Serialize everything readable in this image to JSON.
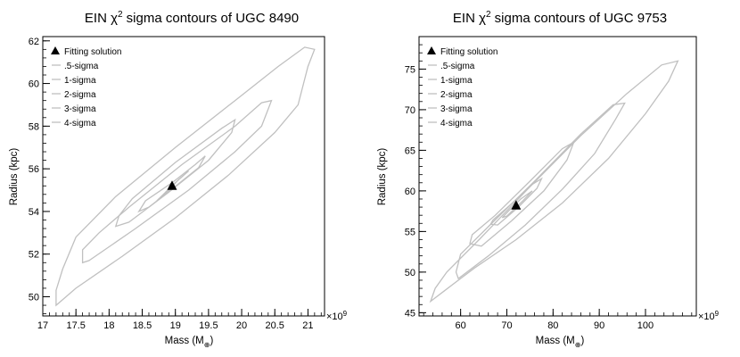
{
  "chart_data": [
    {
      "type": "contour",
      "title_prefix": "EIN χ",
      "title_sup": "2",
      "title_suffix": " sigma contours of UGC 8490",
      "xlabel": "Mass (M",
      "xlabel_sub": "⊕",
      "xlabel_end": ")",
      "ylabel": "Radius (kpc)",
      "x_multiplier": "×10",
      "x_multiplier_exp": "9",
      "xlim": [
        17.0,
        21.25
      ],
      "ylim": [
        49.1,
        62.2
      ],
      "xticks": [
        17,
        17.5,
        18,
        18.5,
        19,
        19.5,
        20,
        20.5,
        21
      ],
      "xtick_labels": [
        "17",
        "17.5",
        "18",
        "18.5",
        "19",
        "19.5",
        "20",
        "20.5",
        "21"
      ],
      "yticks": [
        50,
        52,
        54,
        56,
        58,
        60,
        62
      ],
      "ytick_labels": [
        "50",
        "52",
        "54",
        "56",
        "58",
        "60",
        "62"
      ],
      "best_fit": {
        "x": 18.95,
        "y": 55.2
      },
      "contours": [
        {
          "name": ".5-sigma",
          "points": [
            [
              18.85,
              54.9
            ],
            [
              19.0,
              55.35
            ],
            [
              19.2,
              55.9
            ],
            [
              19.05,
              55.5
            ],
            [
              18.9,
              55.0
            ],
            [
              18.72,
              54.5
            ]
          ]
        },
        {
          "name": "1-sigma",
          "points": [
            [
              18.6,
              54.2
            ],
            [
              18.95,
              55.05
            ],
            [
              19.35,
              56.05
            ],
            [
              19.45,
              56.6
            ],
            [
              19.3,
              56.2
            ],
            [
              18.95,
              55.35
            ],
            [
              18.55,
              54.5
            ],
            [
              18.45,
              54.0
            ]
          ]
        },
        {
          "name": "2-sigma",
          "points": [
            [
              18.3,
              53.5
            ],
            [
              18.9,
              54.9
            ],
            [
              19.5,
              56.4
            ],
            [
              19.85,
              57.7
            ],
            [
              19.9,
              58.3
            ],
            [
              19.7,
              57.9
            ],
            [
              19.0,
              56.3
            ],
            [
              18.35,
              54.6
            ],
            [
              18.15,
              53.8
            ],
            [
              18.1,
              53.3
            ]
          ]
        },
        {
          "name": "3-sigma",
          "points": [
            [
              17.7,
              51.7
            ],
            [
              18.4,
              53.2
            ],
            [
              19.2,
              55.0
            ],
            [
              19.9,
              56.8
            ],
            [
              20.3,
              58.0
            ],
            [
              20.45,
              59.2
            ],
            [
              20.3,
              59.1
            ],
            [
              19.9,
              58.0
            ],
            [
              19.1,
              56.2
            ],
            [
              18.3,
              54.2
            ],
            [
              17.85,
              53.0
            ],
            [
              17.6,
              52.2
            ],
            [
              17.6,
              51.6
            ]
          ]
        },
        {
          "name": "4-sigma",
          "points": [
            [
              17.2,
              49.6
            ],
            [
              17.5,
              50.4
            ],
            [
              18.2,
              51.9
            ],
            [
              19.0,
              53.7
            ],
            [
              19.8,
              55.7
            ],
            [
              20.5,
              57.7
            ],
            [
              20.85,
              59.0
            ],
            [
              21.0,
              60.8
            ],
            [
              21.1,
              61.6
            ],
            [
              20.95,
              61.7
            ],
            [
              20.55,
              60.8
            ],
            [
              19.9,
              59.2
            ],
            [
              19.0,
              57.0
            ],
            [
              18.1,
              54.7
            ],
            [
              17.5,
              52.8
            ],
            [
              17.3,
              51.3
            ],
            [
              17.2,
              50.3
            ]
          ]
        }
      ],
      "legend": {
        "marker_label": "Fitting solution",
        "entries": [
          ".5-sigma",
          "1-sigma",
          "2-sigma",
          "3-sigma",
          "4-sigma"
        ],
        "placement": "top-left"
      },
      "line_color": "#c0c0c0"
    },
    {
      "type": "contour",
      "title_prefix": "EIN χ",
      "title_sup": "2",
      "title_suffix": " sigma contours of UGC 9753",
      "xlabel": "Mass (M",
      "xlabel_sub": "⊕",
      "xlabel_end": ")",
      "ylabel": "Radius (kpc)",
      "x_multiplier": "×10",
      "x_multiplier_exp": "9",
      "xlim": [
        51.0,
        111.0
      ],
      "ylim": [
        44.6,
        79.0
      ],
      "xticks": [
        60,
        70,
        80,
        90,
        100
      ],
      "xtick_labels": [
        "60",
        "70",
        "80",
        "90",
        "100"
      ],
      "yticks": [
        45,
        50,
        55,
        60,
        65,
        70,
        75
      ],
      "ytick_labels": [
        "45",
        "50",
        "55",
        "60",
        "65",
        "70",
        "75"
      ],
      "best_fit": {
        "x": 72.0,
        "y": 58.2
      },
      "contours": [
        {
          "name": ".5-sigma",
          "points": [
            [
              70.0,
              56.9
            ],
            [
              73.5,
              58.8
            ],
            [
              75.5,
              60.0
            ],
            [
              73.0,
              59.0
            ],
            [
              70.5,
              57.6
            ],
            [
              69.0,
              56.7
            ]
          ]
        },
        {
          "name": "1-sigma",
          "points": [
            [
              68.0,
              55.8
            ],
            [
              72.5,
              58.0
            ],
            [
              76.5,
              60.3
            ],
            [
              77.5,
              61.5
            ],
            [
              75.5,
              60.8
            ],
            [
              71.0,
              58.4
            ],
            [
              67.0,
              56.4
            ],
            [
              66.5,
              55.9
            ]
          ]
        },
        {
          "name": "2-sigma",
          "points": [
            [
              64.5,
              53.2
            ],
            [
              71.0,
              56.3
            ],
            [
              78.0,
              60.0
            ],
            [
              83.0,
              63.8
            ],
            [
              84.5,
              66.0
            ],
            [
              82.0,
              65.2
            ],
            [
              75.0,
              61.2
            ],
            [
              67.5,
              57.0
            ],
            [
              62.5,
              54.6
            ],
            [
              62.0,
              53.5
            ]
          ]
        },
        {
          "name": "3-sigma",
          "points": [
            [
              59.5,
              49.2
            ],
            [
              66.0,
              52.0
            ],
            [
              74.0,
              55.8
            ],
            [
              82.0,
              60.2
            ],
            [
              89.0,
              64.6
            ],
            [
              93.5,
              68.8
            ],
            [
              95.5,
              70.8
            ],
            [
              93.0,
              70.6
            ],
            [
              86.0,
              67.0
            ],
            [
              76.0,
              61.2
            ],
            [
              66.0,
              55.6
            ],
            [
              60.0,
              52.2
            ],
            [
              59.0,
              50.0
            ]
          ]
        },
        {
          "name": "4-sigma",
          "points": [
            [
              53.5,
              46.4
            ],
            [
              56.5,
              47.7
            ],
            [
              63.0,
              50.5
            ],
            [
              72.0,
              54.0
            ],
            [
              82.0,
              58.5
            ],
            [
              92.0,
              64.0
            ],
            [
              100.0,
              69.5
            ],
            [
              105.0,
              73.5
            ],
            [
              107.0,
              76.0
            ],
            [
              103.5,
              75.5
            ],
            [
              96.0,
              72.0
            ],
            [
              86.0,
              66.8
            ],
            [
              75.0,
              60.5
            ],
            [
              64.0,
              54.0
            ],
            [
              57.0,
              50.0
            ],
            [
              54.5,
              48.0
            ]
          ]
        }
      ],
      "legend": {
        "marker_label": "Fitting solution",
        "entries": [
          ".5-sigma",
          "1-sigma",
          "2-sigma",
          "3-sigma",
          "4-sigma"
        ],
        "placement": "top-left"
      },
      "line_color": "#c0c0c0"
    }
  ]
}
